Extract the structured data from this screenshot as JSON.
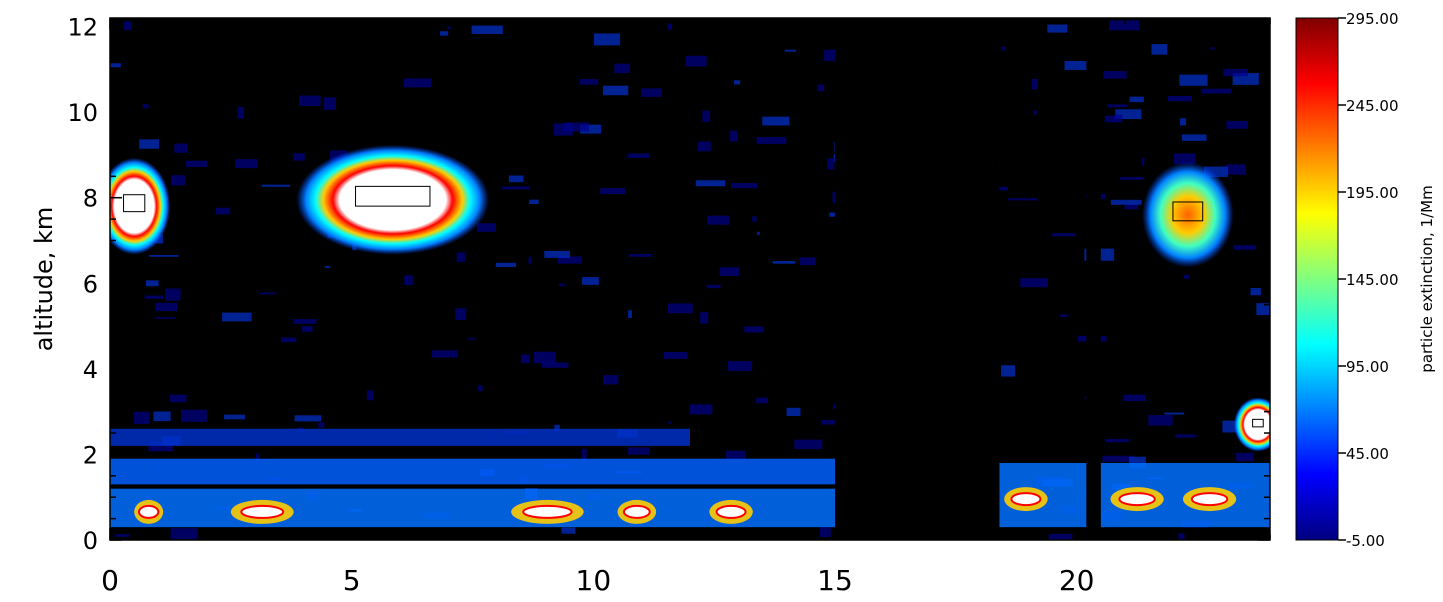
{
  "chart_data": {
    "type": "heatmap",
    "title": "",
    "xlabel": "",
    "ylabel": "altitude, km",
    "xlim": [
      0,
      24
    ],
    "ylim": [
      0,
      12.2
    ],
    "x_ticks": [
      0,
      5,
      10,
      15,
      20
    ],
    "x_tick_labels": [
      "0",
      "5",
      "10",
      "15",
      "20"
    ],
    "y_ticks": [
      0,
      2,
      4,
      6,
      8,
      10,
      12
    ],
    "y_tick_labels": [
      "0",
      "2",
      "4",
      "6",
      "8",
      "10",
      "12"
    ],
    "colorbar": {
      "label": "particle extinction, 1/Mm",
      "range": [
        -5,
        295
      ],
      "tick_values": [
        -5,
        45,
        95,
        145,
        195,
        245,
        295
      ],
      "tick_labels": [
        "-5.00",
        "45.00",
        "95.00",
        "145.00",
        "195.00",
        "245.00",
        "295.00"
      ],
      "colormap": [
        "#000080",
        "#0000ff",
        "#0080ff",
        "#00ffff",
        "#80ff80",
        "#ffff00",
        "#ff8000",
        "#ff0000",
        "#800000"
      ]
    },
    "background_value": -5,
    "no_data_intervals": [
      [
        15.0,
        18.4
      ],
      [
        20.2,
        20.5
      ]
    ],
    "features": [
      {
        "name": "cloud",
        "x": [
          0,
          1
        ],
        "y": [
          6.9,
          8.7
        ],
        "peak": 295
      },
      {
        "name": "cloud",
        "x": [
          4.1,
          7.6
        ],
        "y": [
          6.9,
          9.0
        ],
        "peak": 295
      },
      {
        "name": "cloud",
        "x": [
          21.6,
          23.0
        ],
        "y": [
          6.6,
          8.6
        ],
        "peak": 210
      },
      {
        "name": "cloud",
        "x": [
          23.5,
          24.0
        ],
        "y": [
          2.3,
          3.1
        ],
        "peak": 295
      },
      {
        "name": "aerosol layer",
        "x": [
          0,
          15
        ],
        "y": [
          0.3,
          1.2
        ],
        "peak": 240
      },
      {
        "name": "aerosol layer",
        "x": [
          18.4,
          24
        ],
        "y": [
          0.3,
          1.8
        ],
        "peak": 280
      },
      {
        "name": "aerosol layer",
        "x": [
          0,
          15
        ],
        "y": [
          1.3,
          1.9
        ],
        "peak": 70
      },
      {
        "name": "faint layer",
        "x": [
          0,
          12
        ],
        "y": [
          2.2,
          2.6
        ],
        "peak": 40
      }
    ]
  }
}
